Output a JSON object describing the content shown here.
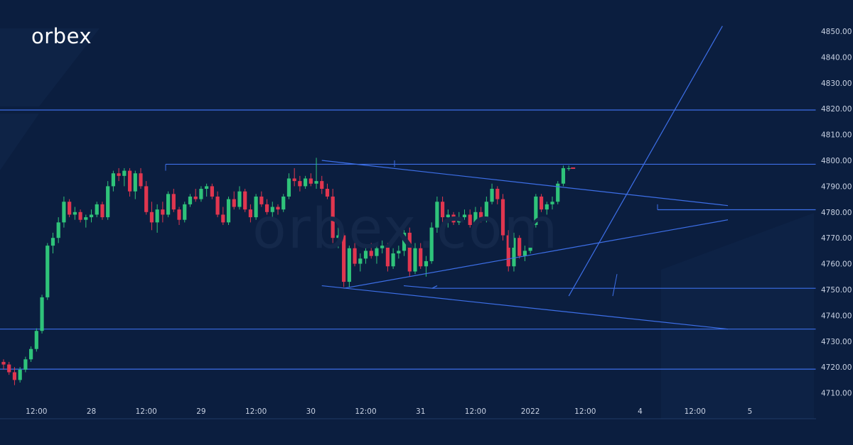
{
  "brand": {
    "logo_text": "orbex",
    "watermark": "orbex.com"
  },
  "colors": {
    "background": "#0b1e3f",
    "up_candle": "#2fc37a",
    "down_candle": "#e0364f",
    "trendline": "#3d6fe8",
    "axis_text": "#c9d2e3",
    "current_price_line": "#e0364f"
  },
  "chart_data": {
    "type": "candlestick",
    "title": "",
    "xlabel": "",
    "ylabel": "",
    "ylim": [
      4705,
      4852
    ],
    "y_ticks": [
      "4710.00",
      "4720.00",
      "4730.00",
      "4740.00",
      "4750.00",
      "4760.00",
      "4770.00",
      "4780.00",
      "4790.00",
      "4800.00",
      "4810.00",
      "4820.00",
      "4830.00",
      "4840.00",
      "4850.00"
    ],
    "x_tick_labels": [
      {
        "label": "12:00",
        "bar": 6
      },
      {
        "label": "28",
        "bar": 16
      },
      {
        "label": "12:00",
        "bar": 26
      },
      {
        "label": "29",
        "bar": 36
      },
      {
        "label": "12:00",
        "bar": 46
      },
      {
        "label": "30",
        "bar": 56
      },
      {
        "label": "12:00",
        "bar": 66
      },
      {
        "label": "31",
        "bar": 76
      },
      {
        "label": "12:00",
        "bar": 86
      },
      {
        "label": "2022",
        "bar": 96
      },
      {
        "label": "12:00",
        "bar": 106
      },
      {
        "label": "4",
        "bar": 116
      },
      {
        "label": "12:00",
        "bar": 126
      },
      {
        "label": "5",
        "bar": 136
      }
    ],
    "candles": [
      [
        4722,
        4723,
        4719,
        4721
      ],
      [
        4721,
        4722,
        4717,
        4718
      ],
      [
        4718,
        4720,
        4713,
        4715
      ],
      [
        4715,
        4720,
        4714,
        4719
      ],
      [
        4719,
        4724,
        4718,
        4723
      ],
      [
        4723,
        4728,
        4722,
        4727
      ],
      [
        4727,
        4735,
        4726,
        4734
      ],
      [
        4734,
        4748,
        4733,
        4747
      ],
      [
        4747,
        4768,
        4746,
        4767
      ],
      [
        4767,
        4772,
        4764,
        4770
      ],
      [
        4770,
        4778,
        4768,
        4776
      ],
      [
        4776,
        4786,
        4774,
        4784
      ],
      [
        4784,
        4785,
        4778,
        4779
      ],
      [
        4779,
        4782,
        4777,
        4780
      ],
      [
        4780,
        4781,
        4776,
        4777
      ],
      [
        4777,
        4779,
        4774,
        4778
      ],
      [
        4778,
        4781,
        4776,
        4779
      ],
      [
        4779,
        4784,
        4778,
        4783
      ],
      [
        4783,
        4784,
        4777,
        4778
      ],
      [
        4778,
        4792,
        4777,
        4790
      ],
      [
        4790,
        4796,
        4788,
        4795
      ],
      [
        4795,
        4797,
        4792,
        4794
      ],
      [
        4794,
        4797,
        4790,
        4796
      ],
      [
        4796,
        4797,
        4786,
        4788
      ],
      [
        4788,
        4796,
        4785,
        4795
      ],
      [
        4795,
        4797,
        4789,
        4790
      ],
      [
        4790,
        4792,
        4779,
        4780
      ],
      [
        4780,
        4784,
        4773,
        4776
      ],
      [
        4776,
        4783,
        4772,
        4781
      ],
      [
        4781,
        4784,
        4776,
        4779
      ],
      [
        4779,
        4788,
        4778,
        4787
      ],
      [
        4787,
        4789,
        4780,
        4781
      ],
      [
        4781,
        4782,
        4775,
        4777
      ],
      [
        4777,
        4784,
        4776,
        4783
      ],
      [
        4783,
        4787,
        4782,
        4786
      ],
      [
        4786,
        4789,
        4784,
        4785
      ],
      [
        4785,
        4790,
        4784,
        4789
      ],
      [
        4789,
        4791,
        4786,
        4790
      ],
      [
        4790,
        4791,
        4785,
        4786
      ],
      [
        4786,
        4788,
        4778,
        4779
      ],
      [
        4779,
        4782,
        4775,
        4776
      ],
      [
        4776,
        4786,
        4775,
        4785
      ],
      [
        4785,
        4788,
        4781,
        4782
      ],
      [
        4782,
        4790,
        4781,
        4788
      ],
      [
        4788,
        4789,
        4780,
        4781
      ],
      [
        4781,
        4783,
        4776,
        4778
      ],
      [
        4778,
        4787,
        4777,
        4786
      ],
      [
        4786,
        4788,
        4782,
        4783
      ],
      [
        4783,
        4785,
        4779,
        4780
      ],
      [
        4780,
        4784,
        4778,
        4782
      ],
      [
        4782,
        4783,
        4779,
        4781
      ],
      [
        4781,
        4787,
        4780,
        4786
      ],
      [
        4786,
        4795,
        4785,
        4793
      ],
      [
        4793,
        4797,
        4790,
        4792
      ],
      [
        4792,
        4794,
        4788,
        4790
      ],
      [
        4790,
        4794,
        4789,
        4793
      ],
      [
        4793,
        4795,
        4790,
        4791
      ],
      [
        4791,
        4801,
        4789,
        4792
      ],
      [
        4792,
        4794,
        4787,
        4789
      ],
      [
        4789,
        4791,
        4785,
        4786
      ],
      [
        4786,
        4789,
        4768,
        4770
      ],
      [
        4770,
        4774,
        4766,
        4771
      ],
      [
        4771,
        4772,
        4751,
        4753
      ],
      [
        4753,
        4767,
        4751,
        4766
      ],
      [
        4766,
        4768,
        4759,
        4760
      ],
      [
        4760,
        4764,
        4757,
        4762
      ],
      [
        4762,
        4767,
        4760,
        4765
      ],
      [
        4765,
        4768,
        4762,
        4763
      ],
      [
        4763,
        4767,
        4760,
        4766
      ],
      [
        4766,
        4769,
        4764,
        4767
      ],
      [
        4767,
        4768,
        4757,
        4759
      ],
      [
        4759,
        4766,
        4758,
        4764
      ],
      [
        4764,
        4767,
        4762,
        4765
      ],
      [
        4765,
        4773,
        4763,
        4772
      ],
      [
        4772,
        4774,
        4755,
        4757
      ],
      [
        4757,
        4768,
        4756,
        4766
      ],
      [
        4766,
        4768,
        4758,
        4759
      ],
      [
        4759,
        4763,
        4755,
        4761
      ],
      [
        4761,
        4776,
        4760,
        4774
      ],
      [
        4774,
        4786,
        4772,
        4784
      ],
      [
        4784,
        4786,
        4776,
        4778
      ],
      [
        4778,
        4781,
        4774,
        4779
      ],
      [
        4779,
        4780,
        4775,
        4776
      ],
      [
        4776,
        4780,
        4775,
        4778
      ],
      [
        4778,
        4781,
        4777,
        4779
      ],
      [
        4779,
        4781,
        4774,
        4775
      ],
      [
        4775,
        4782,
        4773,
        4780
      ],
      [
        4780,
        4782,
        4776,
        4777
      ],
      [
        4777,
        4786,
        4776,
        4784
      ],
      [
        4784,
        4791,
        4783,
        4789
      ],
      [
        4789,
        4790,
        4783,
        4785
      ],
      [
        4785,
        4787,
        4769,
        4771
      ],
      [
        4771,
        4773,
        4757,
        4759
      ],
      [
        4759,
        4772,
        4757,
        4770
      ],
      [
        4770,
        4771,
        4762,
        4763
      ],
      [
        4763,
        4767,
        4761,
        4765
      ],
      [
        4765,
        4777,
        4764,
        4775
      ],
      [
        4775,
        4787,
        4774,
        4786
      ],
      [
        4786,
        4787,
        4780,
        4781
      ],
      [
        4781,
        4784,
        4779,
        4783
      ],
      [
        4783,
        4786,
        4781,
        4784
      ],
      [
        4784,
        4792,
        4783,
        4791
      ],
      [
        4791,
        4798,
        4790,
        4797
      ],
      [
        4797,
        4798,
        4796,
        4797
      ]
    ],
    "current_price": 4797,
    "horizontal_lines": [
      4819.5,
      4798.5,
      4750.5,
      4734.7,
      4719.2,
      4780.9
    ],
    "trendlines": [
      {
        "from": [
          58,
          4800
        ],
        "to": [
          132,
          4782.5
        ]
      },
      {
        "from": [
          62,
          4750.5
        ],
        "to": [
          132,
          4777
        ]
      },
      {
        "from": [
          58,
          4751.5
        ],
        "to": [
          132,
          4734.7
        ]
      },
      {
        "from": [
          103,
          4747.5
        ],
        "to": [
          131,
          4852
        ]
      }
    ]
  }
}
